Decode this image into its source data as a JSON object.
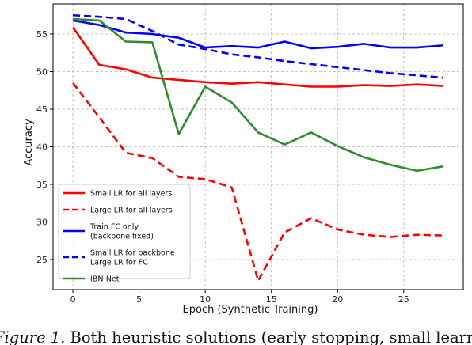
{
  "chart_data": {
    "type": "line",
    "xlabel": "Epoch (Synthetic Training)",
    "ylabel": "Accuracy",
    "xlim": [
      -1.5,
      29.5
    ],
    "ylim": [
      21,
      59
    ],
    "grid": true,
    "legend_position": "lower-left",
    "xticks": [
      0,
      5,
      10,
      15,
      20,
      25
    ],
    "yticks": [
      25,
      30,
      35,
      40,
      45,
      50,
      55
    ],
    "series": [
      {
        "name": [
          "Small LR for all layers"
        ],
        "color": "#ff0000",
        "dash": "solid",
        "x": [
          0,
          2,
          4,
          6,
          8,
          10,
          12,
          14,
          16,
          18,
          20,
          22,
          24,
          26,
          28
        ],
        "y": [
          55.9,
          50.9,
          50.3,
          49.2,
          48.9,
          48.6,
          48.4,
          48.6,
          48.3,
          48.0,
          48.0,
          48.2,
          48.1,
          48.3,
          48.1
        ]
      },
      {
        "name": [
          "Large LR for all layers"
        ],
        "color": "#ff0000",
        "dash": "dashed",
        "x": [
          0,
          2,
          4,
          6,
          8,
          10,
          12,
          14,
          16,
          18,
          20,
          22,
          24,
          26,
          28
        ],
        "y": [
          48.5,
          43.9,
          39.2,
          38.5,
          36.0,
          35.7,
          34.6,
          22.2,
          28.6,
          30.5,
          29.0,
          28.3,
          28.0,
          28.3,
          28.2
        ]
      },
      {
        "name": [
          "Train FC only",
          "(backbone fixed)"
        ],
        "color": "#0000ff",
        "dash": "solid",
        "x": [
          0,
          2,
          4,
          6,
          8,
          10,
          12,
          14,
          16,
          18,
          20,
          22,
          24,
          26,
          28
        ],
        "y": [
          56.8,
          56.2,
          55.2,
          55.0,
          54.5,
          53.2,
          53.4,
          53.2,
          54.0,
          53.1,
          53.3,
          53.7,
          53.2,
          53.2,
          53.5
        ]
      },
      {
        "name": [
          "Small LR for backbone",
          "Large LR for FC"
        ],
        "color": "#0000ff",
        "dash": "dashed",
        "x": [
          0,
          2,
          4,
          6,
          8,
          10,
          12,
          14,
          16,
          18,
          20,
          22,
          24,
          26,
          28
        ],
        "y": [
          57.5,
          57.3,
          57.0,
          55.4,
          53.6,
          53.0,
          52.3,
          51.9,
          51.4,
          51.0,
          50.6,
          50.2,
          49.8,
          49.5,
          49.2
        ]
      },
      {
        "name": [
          "IBN-Net"
        ],
        "color": "#2e8b2e",
        "dash": "solid",
        "x": [
          0,
          2,
          4,
          6,
          8,
          10,
          12,
          14,
          16,
          18,
          20,
          22,
          24,
          26,
          28
        ],
        "y": [
          57.0,
          56.8,
          54.0,
          53.9,
          41.7,
          48.0,
          45.9,
          41.9,
          40.3,
          41.9,
          40.1,
          38.6,
          37.6,
          36.8,
          37.4
        ]
      }
    ]
  },
  "caption": {
    "label": "Figure 1.",
    "text": "Both heuristic solutions (early stopping, small learni"
  }
}
